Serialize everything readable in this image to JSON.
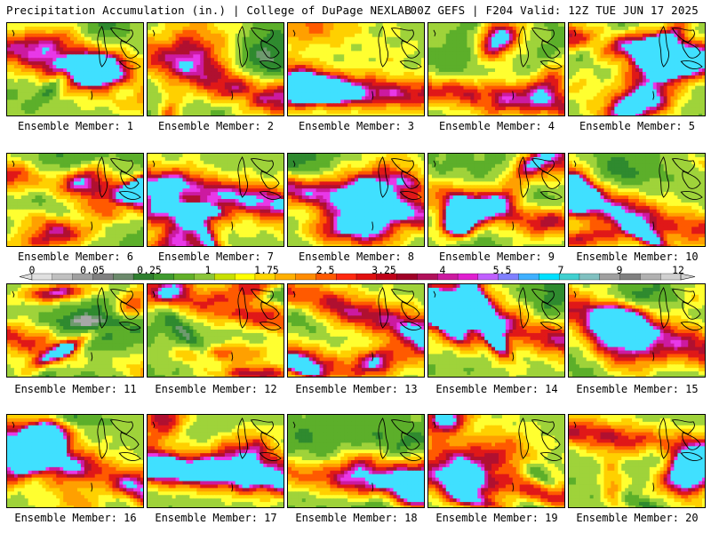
{
  "header": {
    "title_left": "Precipitation Accumulation (in.) | College of DuPage NEXLAB",
    "title_right": "00Z GEFS | F204 Valid: 12Z TUE JUN 17 2025"
  },
  "panels": [
    {
      "label": "Ensemble Member: 1"
    },
    {
      "label": "Ensemble Member: 2"
    },
    {
      "label": "Ensemble Member: 3"
    },
    {
      "label": "Ensemble Member: 4"
    },
    {
      "label": "Ensemble Member: 5"
    },
    {
      "label": "Ensemble Member: 6"
    },
    {
      "label": "Ensemble Member: 7"
    },
    {
      "label": "Ensemble Member: 8"
    },
    {
      "label": "Ensemble Member: 9"
    },
    {
      "label": "Ensemble Member: 10"
    },
    {
      "label": "Ensemble Member: 11"
    },
    {
      "label": "Ensemble Member: 12"
    },
    {
      "label": "Ensemble Member: 13"
    },
    {
      "label": "Ensemble Member: 14"
    },
    {
      "label": "Ensemble Member: 15"
    },
    {
      "label": "Ensemble Member: 16"
    },
    {
      "label": "Ensemble Member: 17"
    },
    {
      "label": "Ensemble Member: 18"
    },
    {
      "label": "Ensemble Member: 19"
    },
    {
      "label": "Ensemble Member: 20"
    }
  ],
  "colorbar": {
    "tick_labels": [
      "0",
      "0.05",
      "0.25",
      "1",
      "1.75",
      "2.5",
      "3.25",
      "4",
      "5.5",
      "7",
      "9",
      "12"
    ],
    "colors": [
      "#e0e0e0",
      "#c0c0c0",
      "#a0a0a0",
      "#808080",
      "#6c8a6c",
      "#2f7f2f",
      "#3f9a2f",
      "#62b02a",
      "#8cc63a",
      "#c8e000",
      "#ffff00",
      "#ffd700",
      "#ffb000",
      "#ff8c00",
      "#ff5a00",
      "#ff2a10",
      "#e01010",
      "#c00018",
      "#a00028",
      "#b0105a",
      "#cc1aa0",
      "#e020d0",
      "#c060ff",
      "#8080ff",
      "#40b0ff",
      "#00e0ff",
      "#40d0d0",
      "#80c0c0",
      "#a0a0a0",
      "#808080",
      "#b0b0b0",
      "#d0d0d0"
    ]
  }
}
